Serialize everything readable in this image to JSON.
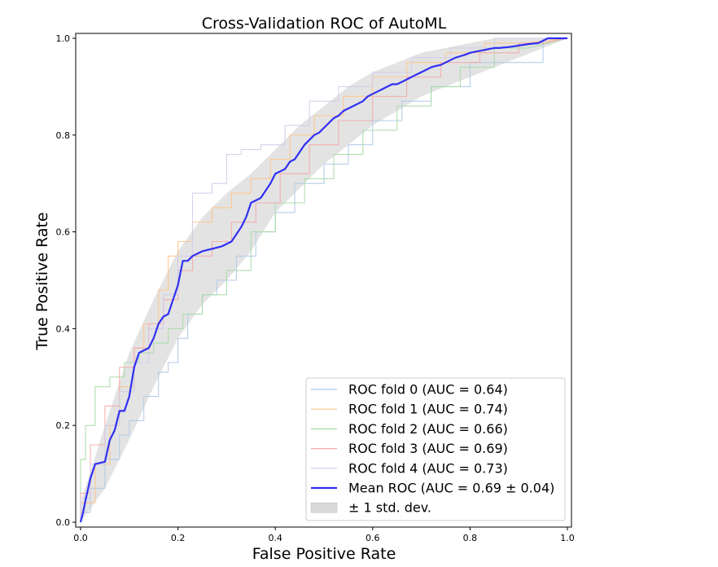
{
  "chart_data": {
    "type": "line",
    "title": "Cross-Validation ROC of AutoML",
    "xlabel": "False Positive Rate",
    "ylabel": "True Positive Rate",
    "xlim": [
      0,
      1
    ],
    "ylim": [
      0,
      1
    ],
    "xticks": [
      "0.0",
      "0.2",
      "0.4",
      "0.6",
      "0.8",
      "1.0"
    ],
    "yticks": [
      "0.0",
      "0.2",
      "0.4",
      "0.6",
      "0.8",
      "1.0"
    ],
    "grid": false,
    "legend_position": "lower-right",
    "series": [
      {
        "name": "ROC fold 0 (AUC = 0.64)",
        "color": "#aec9e8",
        "x": [
          0.0,
          0.0,
          0.02,
          0.02,
          0.05,
          0.05,
          0.08,
          0.08,
          0.1,
          0.1,
          0.13,
          0.13,
          0.16,
          0.16,
          0.18,
          0.18,
          0.2,
          0.2,
          0.22,
          0.22,
          0.25,
          0.25,
          0.28,
          0.28,
          0.32,
          0.32,
          0.36,
          0.36,
          0.4,
          0.4,
          0.44,
          0.44,
          0.5,
          0.5,
          0.55,
          0.55,
          0.6,
          0.6,
          0.66,
          0.66,
          0.72,
          0.72,
          0.8,
          0.8,
          0.86,
          0.86,
          0.95,
          0.95,
          0.97,
          1.0
        ],
        "y": [
          0.0,
          0.02,
          0.02,
          0.07,
          0.07,
          0.13,
          0.13,
          0.18,
          0.18,
          0.21,
          0.21,
          0.26,
          0.26,
          0.31,
          0.31,
          0.33,
          0.33,
          0.38,
          0.38,
          0.43,
          0.43,
          0.47,
          0.47,
          0.5,
          0.5,
          0.55,
          0.55,
          0.6,
          0.6,
          0.64,
          0.64,
          0.7,
          0.7,
          0.74,
          0.74,
          0.78,
          0.78,
          0.83,
          0.83,
          0.87,
          0.87,
          0.9,
          0.9,
          0.95,
          0.95,
          0.95,
          0.95,
          1.0,
          1.0,
          1.0
        ]
      },
      {
        "name": "ROC fold 1 (AUC = 0.74)",
        "color": "#ffc48a",
        "x": [
          0.0,
          0.0,
          0.03,
          0.03,
          0.06,
          0.06,
          0.08,
          0.08,
          0.11,
          0.11,
          0.13,
          0.13,
          0.16,
          0.16,
          0.18,
          0.18,
          0.2,
          0.2,
          0.23,
          0.23,
          0.27,
          0.27,
          0.31,
          0.31,
          0.35,
          0.35,
          0.39,
          0.39,
          0.43,
          0.43,
          0.48,
          0.48,
          0.54,
          0.54,
          0.6,
          0.6,
          0.67,
          0.67,
          0.75,
          0.75,
          0.83,
          0.83,
          0.91,
          1.0
        ],
        "y": [
          0.0,
          0.04,
          0.04,
          0.12,
          0.12,
          0.2,
          0.2,
          0.28,
          0.28,
          0.36,
          0.36,
          0.41,
          0.41,
          0.48,
          0.48,
          0.55,
          0.55,
          0.58,
          0.58,
          0.62,
          0.62,
          0.65,
          0.65,
          0.68,
          0.68,
          0.71,
          0.71,
          0.75,
          0.75,
          0.8,
          0.8,
          0.84,
          0.84,
          0.88,
          0.88,
          0.92,
          0.92,
          0.95,
          0.95,
          0.97,
          0.97,
          0.99,
          0.99,
          1.0
        ]
      },
      {
        "name": "ROC fold 2 (AUC = 0.66)",
        "color": "#a6dca4",
        "x": [
          0.0,
          0.0,
          0.01,
          0.01,
          0.03,
          0.03,
          0.06,
          0.06,
          0.09,
          0.09,
          0.12,
          0.12,
          0.15,
          0.15,
          0.18,
          0.18,
          0.21,
          0.21,
          0.25,
          0.25,
          0.3,
          0.3,
          0.35,
          0.35,
          0.4,
          0.4,
          0.46,
          0.46,
          0.52,
          0.52,
          0.58,
          0.58,
          0.65,
          0.65,
          0.72,
          0.72,
          0.78,
          0.78,
          0.85,
          0.85,
          0.92,
          1.0
        ],
        "y": [
          0.0,
          0.13,
          0.13,
          0.2,
          0.2,
          0.28,
          0.28,
          0.3,
          0.3,
          0.33,
          0.33,
          0.35,
          0.35,
          0.37,
          0.37,
          0.4,
          0.4,
          0.43,
          0.43,
          0.47,
          0.47,
          0.52,
          0.52,
          0.6,
          0.6,
          0.66,
          0.66,
          0.71,
          0.71,
          0.76,
          0.76,
          0.81,
          0.81,
          0.86,
          0.86,
          0.9,
          0.9,
          0.94,
          0.94,
          0.98,
          0.98,
          1.0
        ]
      },
      {
        "name": "ROC fold 3 (AUC = 0.69)",
        "color": "#f4a9a8",
        "x": [
          0.0,
          0.0,
          0.02,
          0.02,
          0.05,
          0.05,
          0.08,
          0.08,
          0.11,
          0.11,
          0.14,
          0.14,
          0.17,
          0.17,
          0.2,
          0.2,
          0.23,
          0.23,
          0.27,
          0.27,
          0.31,
          0.31,
          0.36,
          0.36,
          0.41,
          0.41,
          0.47,
          0.47,
          0.53,
          0.53,
          0.6,
          0.6,
          0.67,
          0.67,
          0.74,
          0.74,
          0.82,
          0.82,
          0.9,
          0.9,
          0.95,
          1.0
        ],
        "y": [
          0.0,
          0.06,
          0.06,
          0.16,
          0.16,
          0.24,
          0.24,
          0.32,
          0.32,
          0.36,
          0.36,
          0.41,
          0.41,
          0.46,
          0.46,
          0.52,
          0.52,
          0.55,
          0.55,
          0.58,
          0.58,
          0.62,
          0.62,
          0.66,
          0.66,
          0.72,
          0.72,
          0.78,
          0.78,
          0.83,
          0.83,
          0.88,
          0.88,
          0.92,
          0.92,
          0.95,
          0.95,
          0.97,
          0.97,
          0.99,
          0.99,
          1.0
        ]
      },
      {
        "name": "ROC fold 4 (AUC = 0.73)",
        "color": "#d2ccea",
        "x": [
          0.0,
          0.0,
          0.02,
          0.02,
          0.05,
          0.05,
          0.08,
          0.08,
          0.11,
          0.11,
          0.14,
          0.14,
          0.17,
          0.17,
          0.2,
          0.2,
          0.23,
          0.23,
          0.27,
          0.27,
          0.3,
          0.3,
          0.33,
          0.33,
          0.37,
          0.37,
          0.42,
          0.42,
          0.47,
          0.47,
          0.53,
          0.53,
          0.6,
          0.6,
          0.68,
          0.68,
          0.76,
          0.76,
          0.85,
          0.85,
          0.92,
          1.0
        ],
        "y": [
          0.0,
          0.05,
          0.05,
          0.12,
          0.12,
          0.2,
          0.2,
          0.27,
          0.27,
          0.33,
          0.33,
          0.4,
          0.4,
          0.47,
          0.47,
          0.55,
          0.55,
          0.68,
          0.68,
          0.7,
          0.7,
          0.76,
          0.76,
          0.77,
          0.77,
          0.78,
          0.78,
          0.82,
          0.82,
          0.87,
          0.87,
          0.9,
          0.9,
          0.93,
          0.93,
          0.96,
          0.96,
          0.98,
          0.98,
          1.0,
          1.0,
          1.0
        ]
      },
      {
        "name": "Mean ROC (AUC = 0.69 ± 0.04)",
        "color": "#2f2ff2",
        "x": [
          0.0,
          0.005,
          0.01,
          0.02,
          0.03,
          0.05,
          0.06,
          0.07,
          0.08,
          0.09,
          0.1,
          0.11,
          0.12,
          0.13,
          0.14,
          0.15,
          0.16,
          0.17,
          0.18,
          0.19,
          0.2,
          0.21,
          0.22,
          0.23,
          0.25,
          0.27,
          0.29,
          0.31,
          0.33,
          0.34,
          0.35,
          0.36,
          0.37,
          0.38,
          0.39,
          0.4,
          0.41,
          0.42,
          0.43,
          0.44,
          0.45,
          0.46,
          0.47,
          0.48,
          0.49,
          0.5,
          0.51,
          0.52,
          0.53,
          0.54,
          0.55,
          0.56,
          0.57,
          0.58,
          0.59,
          0.6,
          0.61,
          0.62,
          0.63,
          0.64,
          0.65,
          0.66,
          0.67,
          0.68,
          0.69,
          0.7,
          0.71,
          0.72,
          0.73,
          0.74,
          0.75,
          0.76,
          0.77,
          0.78,
          0.79,
          0.8,
          0.81,
          0.82,
          0.83,
          0.84,
          0.85,
          0.86,
          0.88,
          0.9,
          0.92,
          0.94,
          0.95,
          0.96,
          0.97,
          0.98,
          1.0
        ],
        "y": [
          0.0,
          0.02,
          0.045,
          0.09,
          0.12,
          0.125,
          0.17,
          0.19,
          0.23,
          0.23,
          0.26,
          0.32,
          0.35,
          0.355,
          0.36,
          0.38,
          0.41,
          0.425,
          0.43,
          0.46,
          0.49,
          0.54,
          0.54,
          0.55,
          0.56,
          0.565,
          0.57,
          0.58,
          0.61,
          0.63,
          0.66,
          0.665,
          0.67,
          0.685,
          0.7,
          0.72,
          0.725,
          0.73,
          0.745,
          0.75,
          0.765,
          0.78,
          0.79,
          0.8,
          0.805,
          0.815,
          0.825,
          0.835,
          0.84,
          0.85,
          0.855,
          0.86,
          0.865,
          0.87,
          0.88,
          0.885,
          0.89,
          0.895,
          0.9,
          0.905,
          0.905,
          0.91,
          0.915,
          0.92,
          0.925,
          0.93,
          0.935,
          0.94,
          0.943,
          0.945,
          0.95,
          0.955,
          0.96,
          0.963,
          0.966,
          0.97,
          0.972,
          0.974,
          0.976,
          0.978,
          0.98,
          0.98,
          0.982,
          0.985,
          0.988,
          0.99,
          0.995,
          1.0,
          1.0,
          1.0,
          1.0
        ]
      }
    ],
    "band": {
      "name": "± 1 std. dev.",
      "color": "#d9d9d9",
      "x": [
        0.0,
        0.05,
        0.1,
        0.15,
        0.2,
        0.25,
        0.3,
        0.35,
        0.4,
        0.45,
        0.5,
        0.55,
        0.6,
        0.65,
        0.7,
        0.75,
        0.8,
        0.85,
        0.9,
        0.95,
        1.0
      ],
      "upper": [
        0.04,
        0.2,
        0.35,
        0.46,
        0.56,
        0.63,
        0.68,
        0.72,
        0.77,
        0.82,
        0.86,
        0.9,
        0.93,
        0.95,
        0.97,
        0.98,
        0.99,
        1.0,
        1.0,
        1.0,
        1.0
      ],
      "lower": [
        0.0,
        0.07,
        0.17,
        0.28,
        0.38,
        0.45,
        0.5,
        0.56,
        0.64,
        0.69,
        0.74,
        0.78,
        0.82,
        0.85,
        0.88,
        0.9,
        0.92,
        0.94,
        0.96,
        0.98,
        1.0
      ]
    }
  }
}
